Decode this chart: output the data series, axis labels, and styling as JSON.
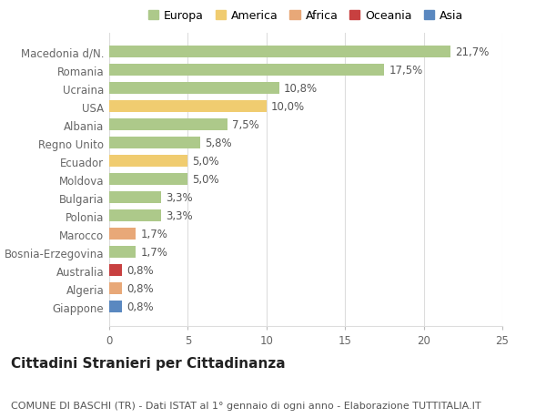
{
  "countries": [
    "Macedonia d/N.",
    "Romania",
    "Ucraina",
    "USA",
    "Albania",
    "Regno Unito",
    "Ecuador",
    "Moldova",
    "Bulgaria",
    "Polonia",
    "Marocco",
    "Bosnia-Erzegovina",
    "Australia",
    "Algeria",
    "Giappone"
  ],
  "values": [
    21.7,
    17.5,
    10.8,
    10.0,
    7.5,
    5.8,
    5.0,
    5.0,
    3.3,
    3.3,
    1.7,
    1.7,
    0.8,
    0.8,
    0.8
  ],
  "labels": [
    "21,7%",
    "17,5%",
    "10,8%",
    "10,0%",
    "7,5%",
    "5,8%",
    "5,0%",
    "5,0%",
    "3,3%",
    "3,3%",
    "1,7%",
    "1,7%",
    "0,8%",
    "0,8%",
    "0,8%"
  ],
  "colors": [
    "#adc98a",
    "#adc98a",
    "#adc98a",
    "#f0cc70",
    "#adc98a",
    "#adc98a",
    "#f0cc70",
    "#adc98a",
    "#adc98a",
    "#adc98a",
    "#e8a878",
    "#adc98a",
    "#c84040",
    "#e8a878",
    "#5a88c0"
  ],
  "legend_labels": [
    "Europa",
    "America",
    "Africa",
    "Oceania",
    "Asia"
  ],
  "legend_colors": [
    "#adc98a",
    "#f0cc70",
    "#e8a878",
    "#c84040",
    "#5a88c0"
  ],
  "xlim": [
    0,
    25
  ],
  "xticks": [
    0,
    5,
    10,
    15,
    20,
    25
  ],
  "title": "Cittadini Stranieri per Cittadinanza",
  "subtitle": "COMUNE DI BASCHI (TR) - Dati ISTAT al 1° gennaio di ogni anno - Elaborazione TUTTITALIA.IT",
  "bg_color": "#ffffff",
  "grid_color": "#dddddd",
  "bar_height": 0.65,
  "label_fontsize": 8.5,
  "tick_fontsize": 8.5,
  "title_fontsize": 11,
  "subtitle_fontsize": 8
}
